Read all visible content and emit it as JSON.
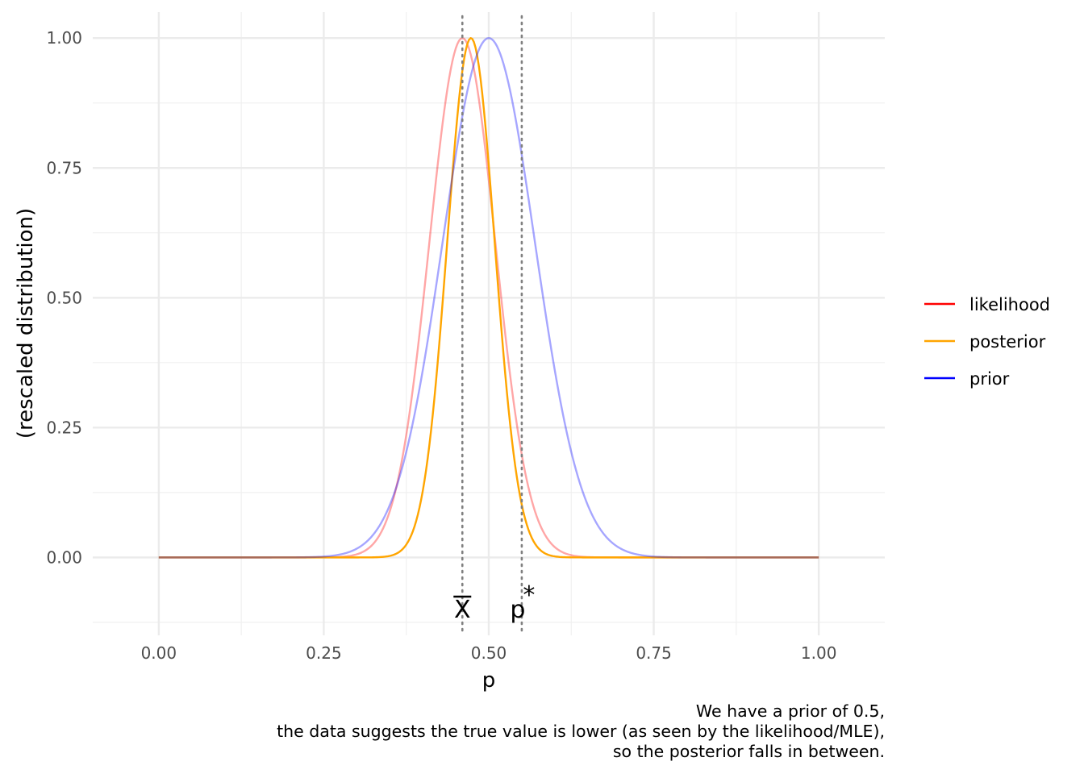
{
  "chart_data": {
    "type": "line",
    "xlabel": "p",
    "ylabel": "(rescaled distribution)",
    "xlim": [
      -0.1,
      1.1
    ],
    "ylim": [
      -0.15,
      1.05
    ],
    "x_ticks": [
      "0.00",
      "0.25",
      "0.50",
      "0.75",
      "1.00"
    ],
    "x_tick_values": [
      0,
      0.25,
      0.5,
      0.75,
      1.0
    ],
    "y_ticks": [
      "0.00",
      "0.25",
      "0.50",
      "0.75",
      "1.00"
    ],
    "y_tick_values": [
      0,
      0.25,
      0.5,
      0.75,
      1.0
    ],
    "grid": true,
    "legend_position": "right",
    "series": [
      {
        "name": "likelihood",
        "color": "#ff0000",
        "legend_color": "#ff0000",
        "alpha": 0.35,
        "mode": 0.46,
        "sd": 0.05
      },
      {
        "name": "posterior",
        "color": "#ffa500",
        "legend_color": "#ffa500",
        "alpha": 1.0,
        "mode": 0.473,
        "sd": 0.036
      },
      {
        "name": "prior",
        "color": "#0000ff",
        "legend_color": "#0000ff",
        "alpha": 0.35,
        "mode": 0.5,
        "sd": 0.07
      }
    ],
    "vlines": [
      {
        "x": 0.46,
        "label": "X̄",
        "style": "dotted"
      },
      {
        "x": 0.55,
        "label": "p*",
        "style": "dotted"
      }
    ]
  },
  "caption": [
    "We have a prior of 0.5,",
    "the data suggests the true value is lower (as seen by the likelihood/MLE),",
    "so the posterior falls in between."
  ]
}
